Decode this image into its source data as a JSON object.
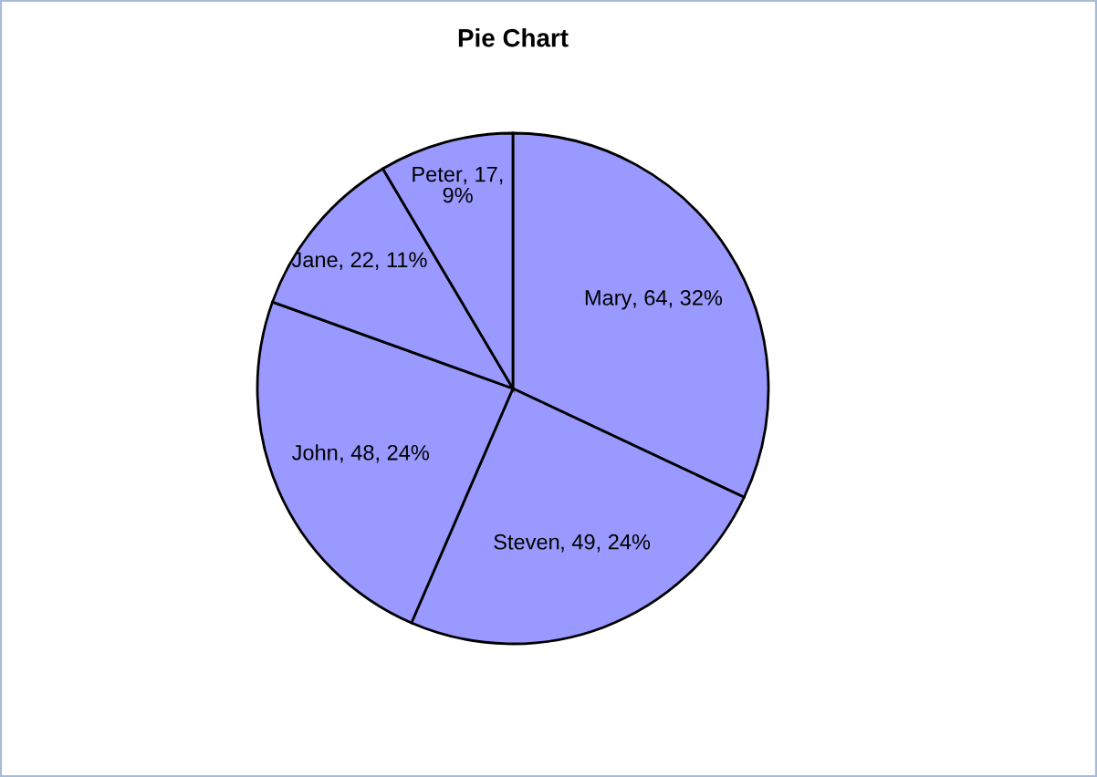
{
  "chart_data": {
    "type": "pie",
    "title": "Pie Chart",
    "categories": [
      "Mary",
      "Steven",
      "John",
      "Jane",
      "Peter"
    ],
    "values": [
      64,
      49,
      48,
      22,
      17
    ],
    "colors": [
      "#9999ff",
      "#9999ff",
      "#9999ff",
      "#9999ff",
      "#9999ff"
    ],
    "value_labels": [
      ", 64, 32%",
      ", 49, 24%",
      ", 48, 24%",
      ", 22, 11%",
      ", 17, 9%"
    ],
    "legend": false
  }
}
